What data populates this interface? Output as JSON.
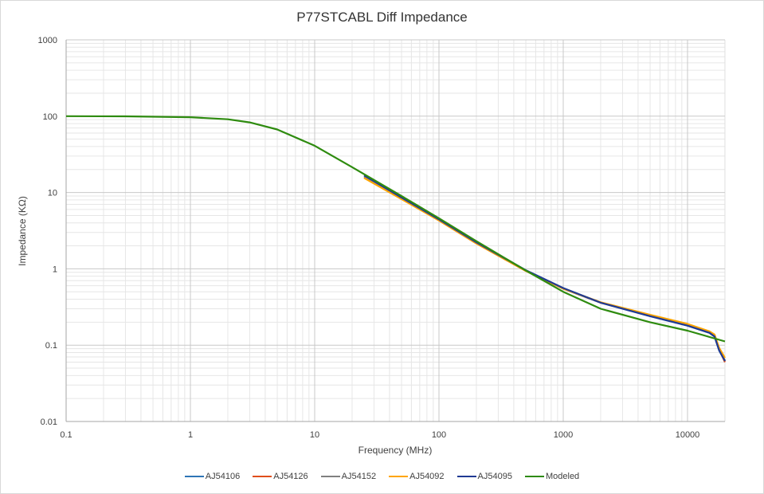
{
  "chart_data": {
    "type": "line",
    "title": "P77STCABL Diff Impedance",
    "xlabel": "Frequency (MHz)",
    "ylabel": "Impedance (KΩ)",
    "xscale": "log",
    "yscale": "log",
    "xlim": [
      0.1,
      20000
    ],
    "ylim": [
      0.01,
      1000
    ],
    "xticks": [
      "0.1",
      "1",
      "10",
      "100",
      "1000",
      "10000"
    ],
    "yticks": [
      "1000",
      "100",
      "10",
      "1",
      "0.1",
      "0.01"
    ],
    "grid": true,
    "legend_position": "bottom",
    "series": [
      {
        "name": "AJ54106",
        "color": "#2e75b6",
        "x": [
          25,
          50,
          100,
          200,
          500,
          1000,
          2000,
          5000,
          10000,
          15000,
          16500,
          18000,
          20000
        ],
        "values": [
          16.5,
          8.5,
          4.4,
          2.2,
          0.95,
          0.55,
          0.36,
          0.24,
          0.18,
          0.145,
          0.13,
          0.085,
          0.062
        ]
      },
      {
        "name": "AJ54126",
        "color": "#e04e1b",
        "x": [
          25,
          50,
          100,
          200,
          500,
          1000,
          2000,
          5000,
          10000,
          15000,
          16500,
          18000,
          20000
        ],
        "values": [
          15.8,
          8.3,
          4.3,
          2.15,
          0.94,
          0.55,
          0.36,
          0.245,
          0.185,
          0.15,
          0.135,
          0.088,
          0.06
        ]
      },
      {
        "name": "AJ54152",
        "color": "#808080",
        "x": [
          25,
          50,
          100,
          200,
          500,
          1000,
          2000,
          5000,
          10000,
          15000,
          16500,
          18000,
          20000
        ],
        "values": [
          16.0,
          8.4,
          4.35,
          2.2,
          0.95,
          0.55,
          0.36,
          0.245,
          0.183,
          0.148,
          0.133,
          0.087,
          0.063
        ]
      },
      {
        "name": "AJ54092",
        "color": "#ffa500",
        "x": [
          25,
          50,
          100,
          200,
          500,
          1000,
          2000,
          5000,
          10000,
          15000,
          16500,
          18000,
          20000
        ],
        "values": [
          15.5,
          8.2,
          4.3,
          2.15,
          0.94,
          0.55,
          0.365,
          0.25,
          0.19,
          0.152,
          0.138,
          0.092,
          0.068
        ]
      },
      {
        "name": "AJ54095",
        "color": "#1f3a93",
        "x": [
          25,
          50,
          100,
          200,
          500,
          1000,
          2000,
          5000,
          10000,
          15000,
          16500,
          18000,
          20000
        ],
        "values": [
          16.8,
          8.6,
          4.45,
          2.22,
          0.96,
          0.56,
          0.36,
          0.24,
          0.18,
          0.145,
          0.13,
          0.085,
          0.062
        ]
      },
      {
        "name": "Modeled",
        "color": "#2e8b0f",
        "x": [
          0.1,
          0.3,
          1,
          2,
          3,
          5,
          10,
          20,
          50,
          100,
          200,
          500,
          1000,
          2000,
          5000,
          10000,
          20000
        ],
        "values": [
          100,
          99.5,
          97,
          91,
          83,
          67,
          41,
          21.5,
          9.0,
          4.6,
          2.3,
          0.95,
          0.5,
          0.3,
          0.2,
          0.155,
          0.112
        ]
      }
    ]
  },
  "legend": [
    "AJ54106",
    "AJ54126",
    "AJ54152",
    "AJ54092",
    "AJ54095",
    "Modeled"
  ]
}
